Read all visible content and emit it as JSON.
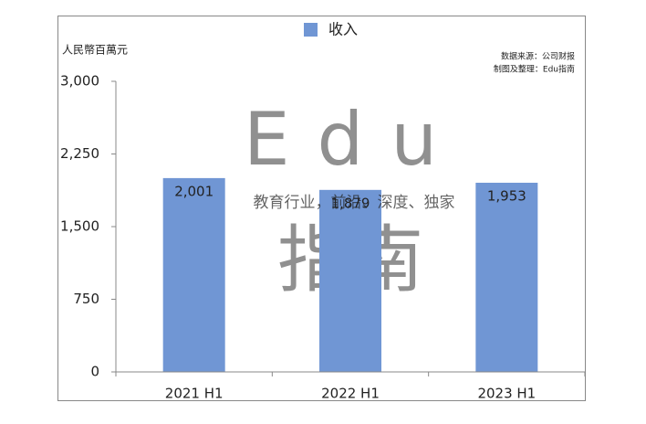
{
  "chart_data": {
    "type": "bar",
    "y_axis_label": "人民幣百萬元",
    "notes": [
      "数据来源：公司财报",
      "制图及整理：Edu指南"
    ],
    "watermark": [
      "Edu",
      "指南",
      "教育行业，前沿、深度、独家"
    ],
    "categories": [
      "2021 H1",
      "2022 H1",
      "2023 H1"
    ],
    "series": [
      {
        "name": "收入",
        "color": "#7096d4",
        "values": [
          2001,
          1879,
          1953
        ],
        "value_labels": [
          "2,001",
          "1,879",
          "1,953"
        ]
      }
    ],
    "ylim": [
      0,
      3000
    ],
    "yticks": [
      0,
      750,
      {
        "value": 1500,
        "label": "1,500"
      },
      {
        "value": 2250,
        "label": "2,250"
      },
      {
        "value": 3000,
        "label": "3,000"
      }
    ],
    "grid": false
  }
}
